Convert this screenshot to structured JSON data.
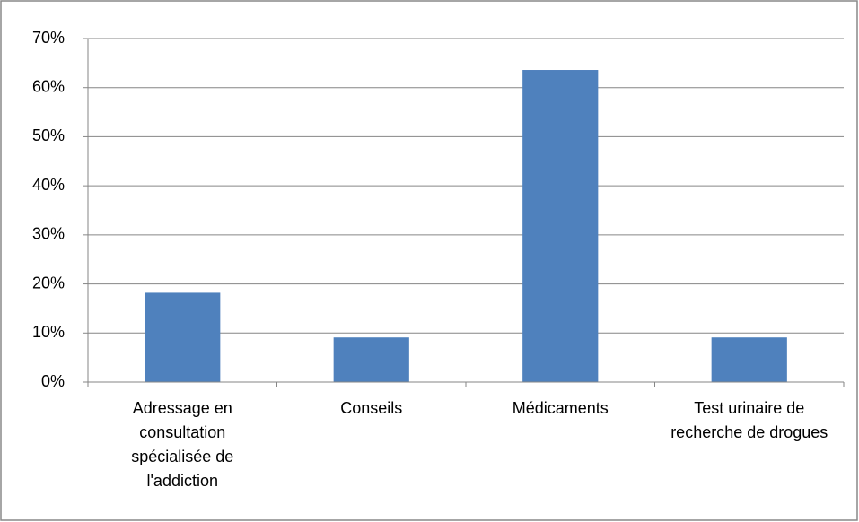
{
  "chart_data": {
    "type": "bar",
    "categories": [
      "Adressage en consultation spécialisée de l'addiction",
      "Conseils",
      "Médicaments",
      "Test urinaire de recherche de drogues"
    ],
    "values": [
      18.2,
      9.1,
      63.6,
      9.1
    ],
    "color": "#4f81bd",
    "ylim": [
      0,
      70
    ],
    "yticks": [
      {
        "value": 0,
        "label": "0%"
      },
      {
        "value": 10,
        "label": "10%"
      },
      {
        "value": 20,
        "label": "20%"
      },
      {
        "value": 30,
        "label": "30%"
      },
      {
        "value": 40,
        "label": "40%"
      },
      {
        "value": 50,
        "label": "50%"
      },
      {
        "value": 60,
        "label": "60%"
      },
      {
        "value": 70,
        "label": "70%"
      }
    ],
    "grid": true
  }
}
